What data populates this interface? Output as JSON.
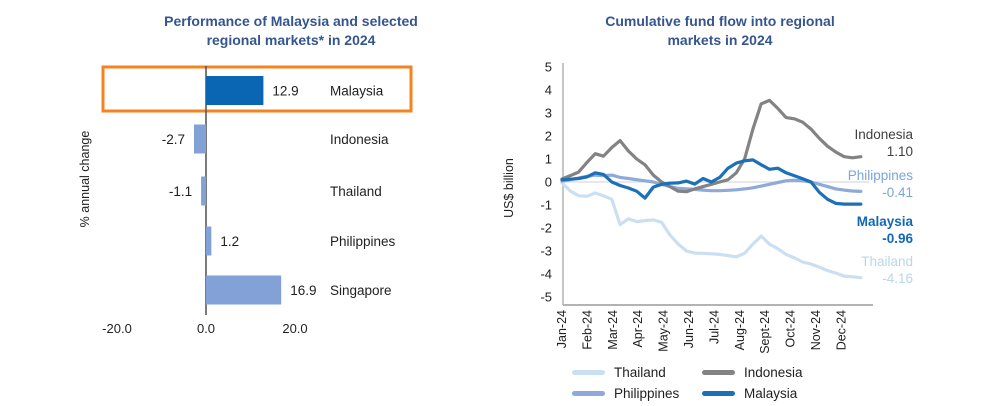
{
  "colors": {
    "title": "#35558f",
    "text": "#1f1f1f",
    "bar_light": "#82a1d6",
    "bar_dark": "#0a66b2",
    "highlight_box": "#f5831f",
    "axis_dark": "#595959",
    "axis_light": "#b3b3b3",
    "zero_line": "#d9d9d9",
    "thailand": "#cbdff2",
    "philippines": "#8fa9db",
    "indonesia": "#838383",
    "malaysia": "#1c70b7",
    "label_thailand": "#b8d6ee",
    "label_philippines": "#7aa5da",
    "label_indonesia": "#3f3f3f",
    "label_malaysia": "#1268b3"
  },
  "chart_data": [
    {
      "type": "bar",
      "orientation": "horizontal",
      "title": "Performance of Malaysia and selected regional markets* in 2024",
      "title_lines": [
        "Performance of Malaysia and selected",
        "regional markets* in 2024"
      ],
      "ylabel": "% annual change",
      "categories": [
        "Malaysia",
        "Indonesia",
        "Thailand",
        "Philippines",
        "Singapore"
      ],
      "values": [
        12.9,
        -2.7,
        -1.1,
        1.2,
        16.9
      ],
      "value_labels": [
        "12.9",
        "-2.7",
        "-1.1",
        "1.2",
        "16.9"
      ],
      "bar_colors": [
        "bar_dark",
        "bar_light",
        "bar_light",
        "bar_light",
        "bar_light"
      ],
      "highlighted_category": "Malaysia",
      "xticks": [
        -20,
        0,
        20
      ],
      "xtick_labels": [
        "-20.0",
        "0.0",
        "20.0"
      ],
      "grid": false
    },
    {
      "type": "line",
      "title": "Cumulative fund flow into regional markets in 2024",
      "title_lines": [
        "Cumulative fund flow into regional",
        "markets in 2024"
      ],
      "ylabel": "US$ billion",
      "ylim": [
        -5,
        5
      ],
      "yticks": [
        5,
        4,
        3,
        2,
        1,
        0,
        -1,
        -2,
        -3,
        -4,
        -5
      ],
      "x_labels": [
        "Jan-24",
        "Feb-24",
        "Mar-24",
        "Apr-24",
        "May-24",
        "Jun-24",
        "Jul-24",
        "Aug-24",
        "Sept-24",
        "Oct-24",
        "Nov-24",
        "Dec-24"
      ],
      "legend_position": "bottom",
      "grid": false,
      "series": [
        {
          "name": "Thailand",
          "color_key": "thailand",
          "end_value": -4.16,
          "values": [
            -0.04,
            -0.39,
            -0.6,
            -0.62,
            -0.48,
            -0.6,
            -0.75,
            -1.85,
            -1.6,
            -1.72,
            -1.68,
            -1.65,
            -1.75,
            -2.3,
            -2.7,
            -3.0,
            -3.09,
            -3.1,
            -3.12,
            -3.15,
            -3.2,
            -3.25,
            -3.1,
            -2.7,
            -2.35,
            -2.7,
            -2.9,
            -3.15,
            -3.3,
            -3.48,
            -3.57,
            -3.7,
            -3.85,
            -3.96,
            -4.09,
            -4.12,
            -4.16
          ]
        },
        {
          "name": "Philippines",
          "color_key": "philippines",
          "end_value": -0.41,
          "values": [
            0.04,
            0.1,
            0.17,
            0.25,
            0.3,
            0.28,
            0.3,
            0.2,
            0.15,
            0.1,
            0.05,
            0.0,
            -0.1,
            -0.2,
            -0.28,
            -0.3,
            -0.32,
            -0.35,
            -0.38,
            -0.38,
            -0.36,
            -0.34,
            -0.3,
            -0.25,
            -0.18,
            -0.1,
            -0.02,
            0.05,
            0.08,
            0.05,
            0.0,
            -0.1,
            -0.2,
            -0.3,
            -0.35,
            -0.39,
            -0.41
          ]
        },
        {
          "name": "Indonesia",
          "color_key": "indonesia",
          "end_value": 1.1,
          "values": [
            0.13,
            0.28,
            0.43,
            0.85,
            1.23,
            1.12,
            1.5,
            1.8,
            1.35,
            1.0,
            0.75,
            0.3,
            0.0,
            -0.2,
            -0.4,
            -0.42,
            -0.3,
            -0.2,
            -0.1,
            0.0,
            0.1,
            0.4,
            1.0,
            2.3,
            3.4,
            3.55,
            3.2,
            2.8,
            2.75,
            2.6,
            2.3,
            1.9,
            1.55,
            1.3,
            1.1,
            1.05,
            1.1
          ]
        },
        {
          "name": "Malaysia",
          "color_key": "malaysia",
          "end_value": -0.96,
          "values": [
            0.09,
            0.12,
            0.15,
            0.22,
            0.4,
            0.33,
            0.0,
            -0.15,
            -0.26,
            -0.4,
            -0.7,
            -0.22,
            -0.1,
            -0.05,
            -0.04,
            0.04,
            -0.09,
            0.15,
            0.0,
            0.2,
            0.6,
            0.82,
            0.92,
            0.96,
            0.75,
            0.55,
            0.6,
            0.4,
            0.27,
            0.14,
            0.0,
            -0.45,
            -0.75,
            -0.93,
            -0.96,
            -0.96,
            -0.96
          ]
        }
      ],
      "end_labels": [
        {
          "name": "Indonesia",
          "value": "1.10",
          "color_key": "label_indonesia",
          "bold": false
        },
        {
          "name": "Philippines",
          "value": "-0.41",
          "color_key": "label_philippines",
          "bold": false
        },
        {
          "name": "Malaysia",
          "value": "-0.96",
          "color_key": "label_malaysia",
          "bold": true
        },
        {
          "name": "Thailand",
          "value": "-4.16",
          "color_key": "label_thailand",
          "bold": false
        }
      ]
    }
  ],
  "legend": {
    "items": [
      {
        "label": "Thailand",
        "color_key": "thailand"
      },
      {
        "label": "Philippines",
        "color_key": "philippines"
      },
      {
        "label": "Indonesia",
        "color_key": "indonesia"
      },
      {
        "label": "Malaysia",
        "color_key": "malaysia"
      }
    ]
  }
}
